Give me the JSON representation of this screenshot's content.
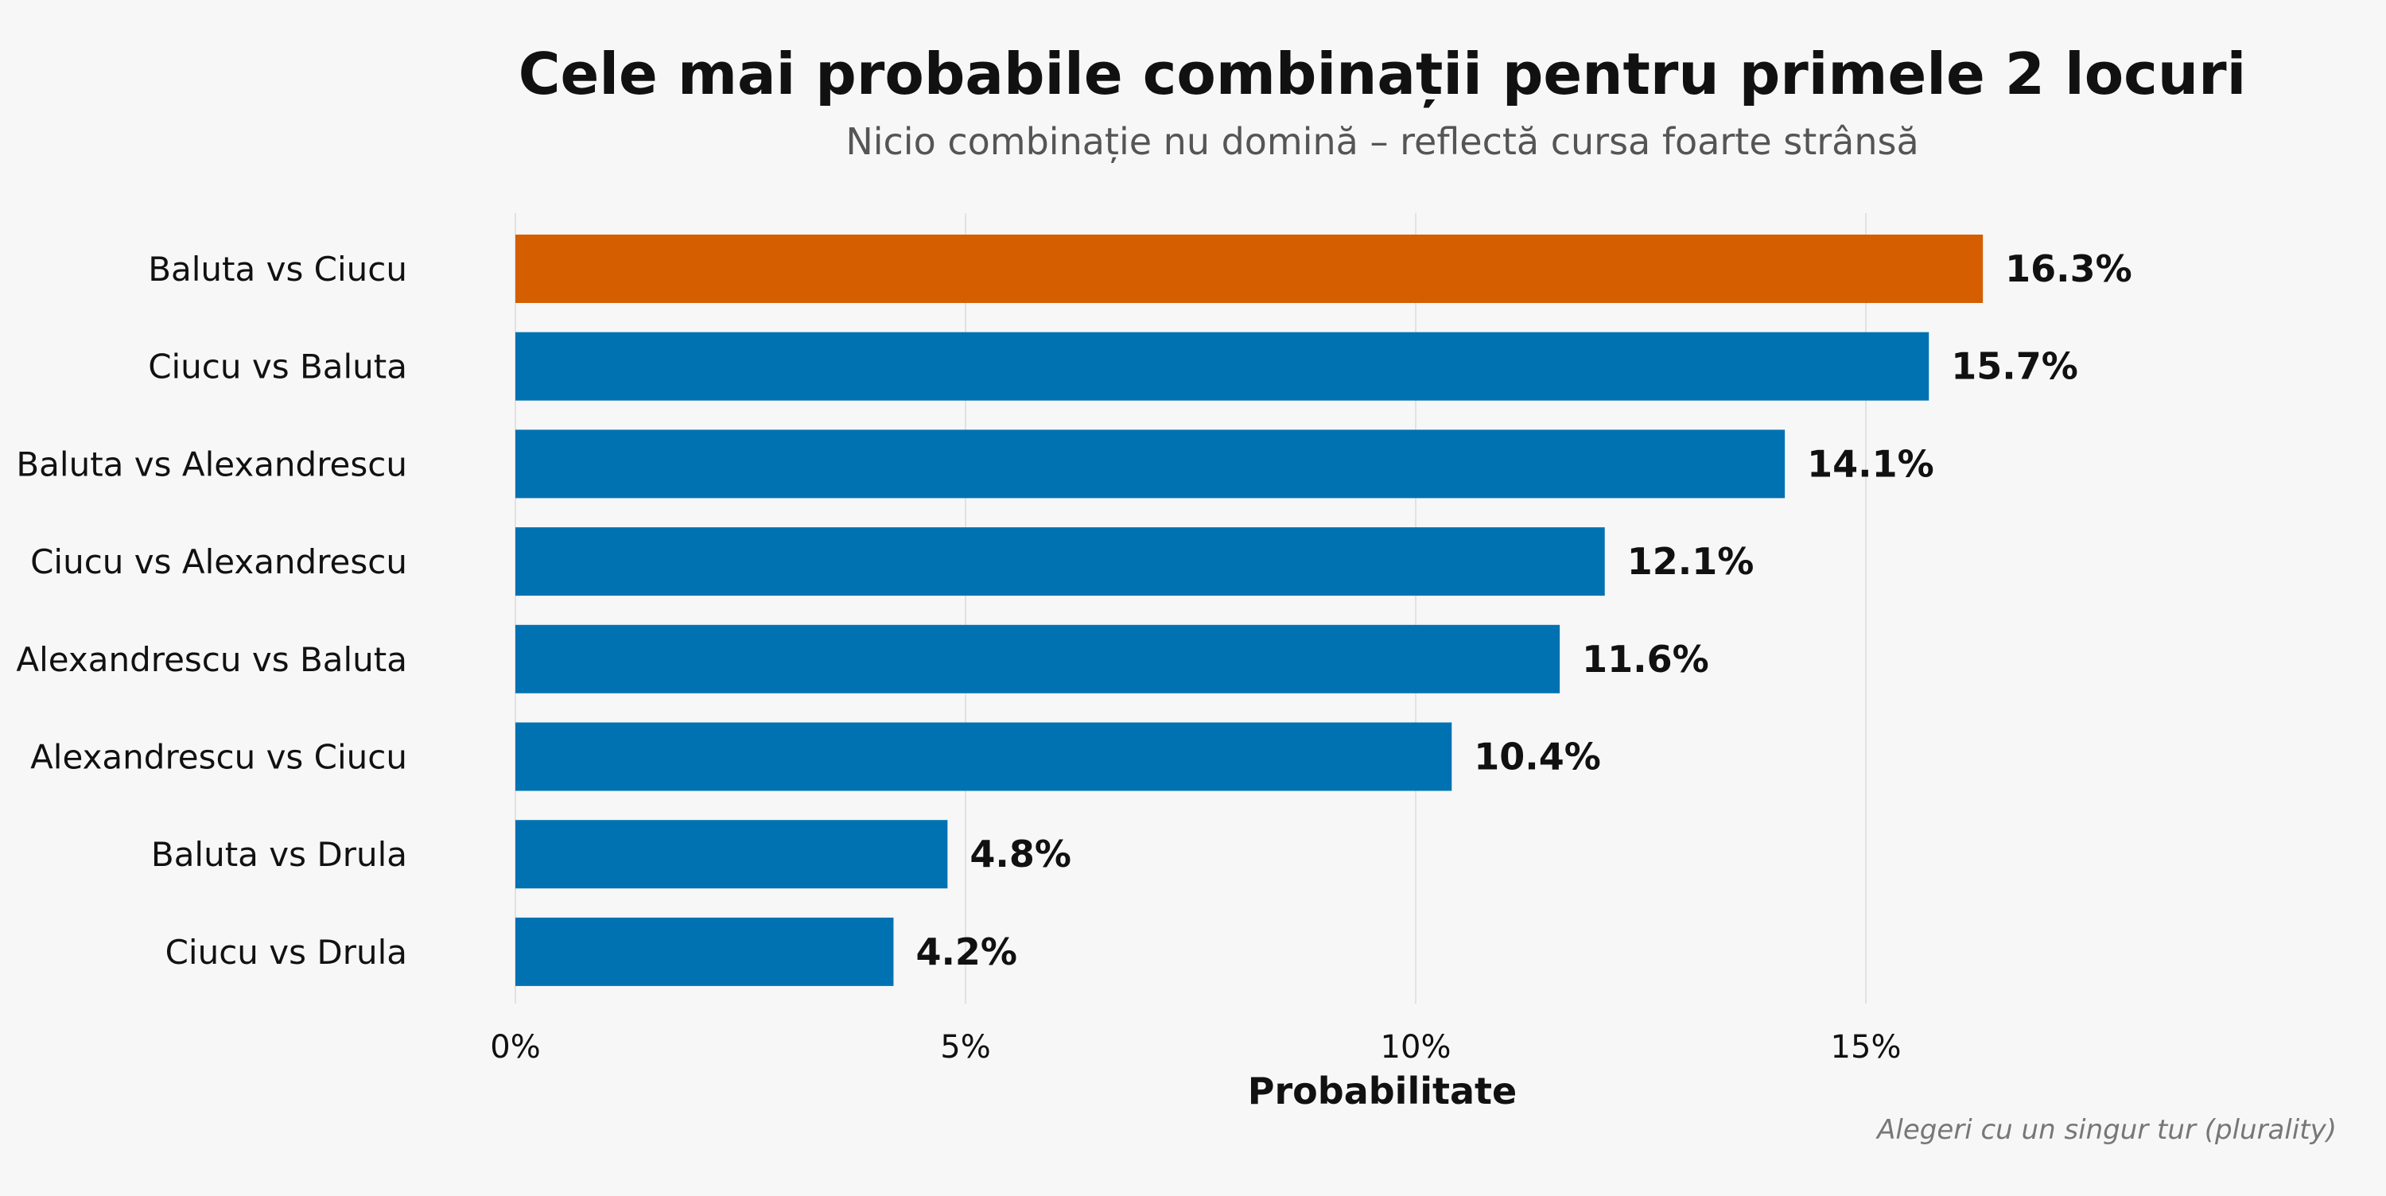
{
  "chart_data": {
    "type": "bar",
    "orientation": "horizontal",
    "title": "Cele mai probabile combinații pentru primele 2 locuri",
    "subtitle": "Nicio combinație nu domină – reflectă cursa foarte strânsă",
    "xlabel": "Probabilitate",
    "ylabel": "",
    "caption": "Alegeri cu un singur tur (plurality)",
    "categories": [
      "Baluta vs Ciucu",
      "Ciucu vs Baluta",
      "Baluta vs Alexandrescu",
      "Ciucu vs Alexandrescu",
      "Alexandrescu vs Baluta",
      "Alexandrescu vs Ciucu",
      "Baluta vs Drula",
      "Ciucu vs Drula"
    ],
    "values": [
      16.3,
      15.7,
      14.1,
      12.1,
      11.6,
      10.4,
      4.8,
      4.2
    ],
    "value_labels": [
      "16.3%",
      "15.7%",
      "14.1%",
      "12.1%",
      "11.6%",
      "10.4%",
      "4.8%",
      "4.2%"
    ],
    "highlight_index": 0,
    "xlim": [
      0,
      20
    ],
    "xticks": [
      0,
      5,
      10,
      15
    ],
    "xtick_labels": [
      "0%",
      "5%",
      "10%",
      "15%"
    ],
    "grid": true,
    "colors": {
      "background": "#f7f7f7",
      "bar": "#0072b2",
      "highlight": "#d55e00",
      "grid": "#e2e2e2",
      "title": "#111111",
      "subtitle": "#555555",
      "caption": "#777777",
      "label": "#111111"
    }
  }
}
